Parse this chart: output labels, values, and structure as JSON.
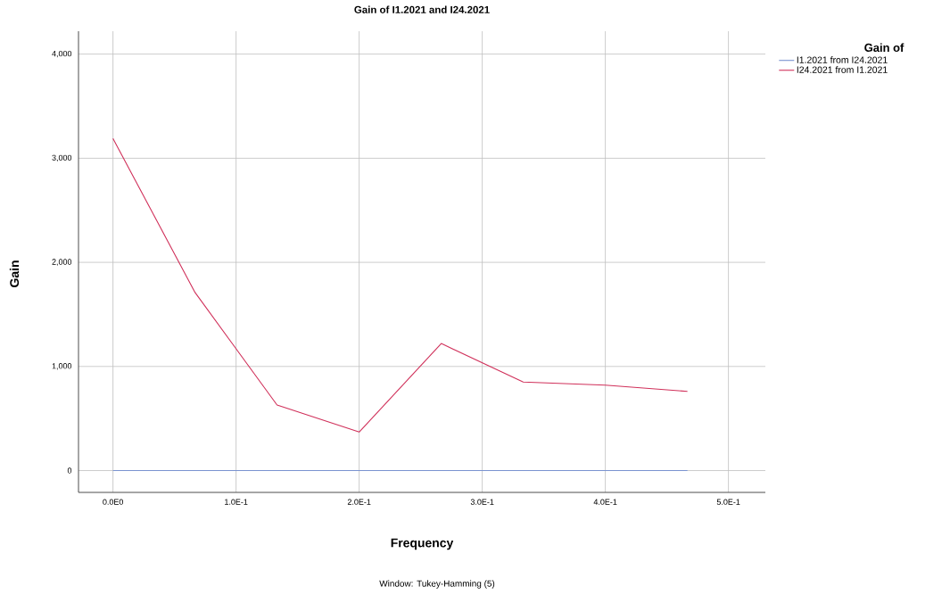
{
  "chart_data": {
    "type": "line",
    "title": "Gain of I1.2021 and I24.2021",
    "xlabel": "Frequency",
    "ylabel": "Gain",
    "legend_title": "Gain of",
    "annotations": [
      "Window: Tukey-Hamming (5)"
    ],
    "x": [
      0,
      0.0667,
      0.1333,
      0.2,
      0.2667,
      0.3333,
      0.4,
      0.4667
    ],
    "series": [
      {
        "name": "I1.2021 from I24.2021",
        "color": "#7a93d0",
        "values": [
          0,
          0,
          0,
          0,
          0,
          0,
          0,
          0
        ]
      },
      {
        "name": "I24.2021 from I1.2021",
        "color": "#d0305a",
        "values": [
          3190,
          1710,
          630,
          370,
          1220,
          850,
          820,
          760
        ]
      }
    ],
    "xlim": [
      -0.028,
      0.53
    ],
    "ylim": [
      -210,
      4220
    ],
    "xticks": [
      {
        "value": 0,
        "label": "0.0E0"
      },
      {
        "value": 0.1,
        "label": "1.0E-1"
      },
      {
        "value": 0.2,
        "label": "2.0E-1"
      },
      {
        "value": 0.3,
        "label": "3.0E-1"
      },
      {
        "value": 0.4,
        "label": "4.0E-1"
      },
      {
        "value": 0.5,
        "label": "5.0E-1"
      }
    ],
    "yticks": [
      0,
      {
        "value": 1000,
        "label": "1,000"
      },
      {
        "value": 2000,
        "label": "2,000"
      },
      {
        "value": 3000,
        "label": "3,000"
      },
      {
        "value": 4000,
        "label": "4,000"
      }
    ],
    "grid": true,
    "legend": "top right"
  }
}
